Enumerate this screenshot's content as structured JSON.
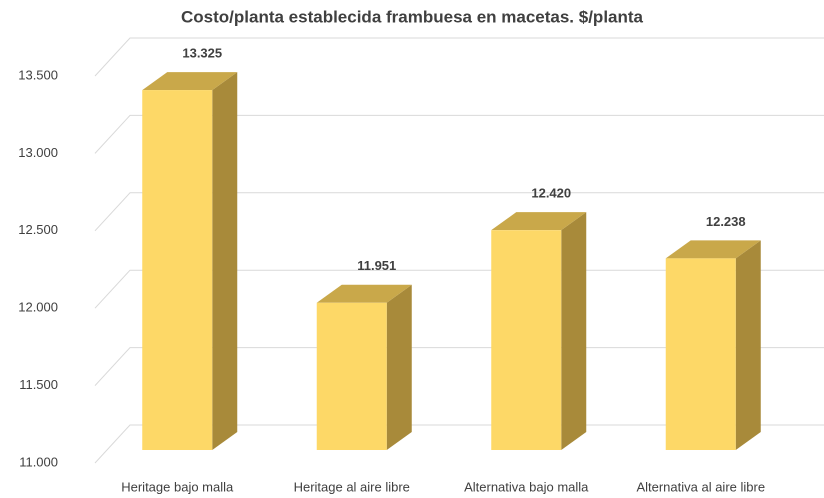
{
  "chart_data": {
    "type": "bar3d",
    "title": "Costo/planta establecida frambuesa en macetas. $/planta",
    "categories": [
      "Heritage bajo malla",
      "Heritage al aire libre",
      "Alternativa bajo malla",
      "Alternativa al aire libre"
    ],
    "values": [
      13325,
      11951,
      12420,
      12238
    ],
    "value_labels": [
      "13.325",
      "11.951",
      "12.420",
      "12.238"
    ],
    "color": "#fdd867",
    "ylim": [
      11000,
      13500
    ],
    "yticks": [
      {
        "value": 11000,
        "label": "11.000"
      },
      {
        "value": 11500,
        "label": "11.500"
      },
      {
        "value": 12000,
        "label": "12.000"
      },
      {
        "value": 12500,
        "label": "12.500"
      },
      {
        "value": 13000,
        "label": "13.000"
      },
      {
        "value": 13500,
        "label": "13.500"
      }
    ],
    "grid": true
  }
}
